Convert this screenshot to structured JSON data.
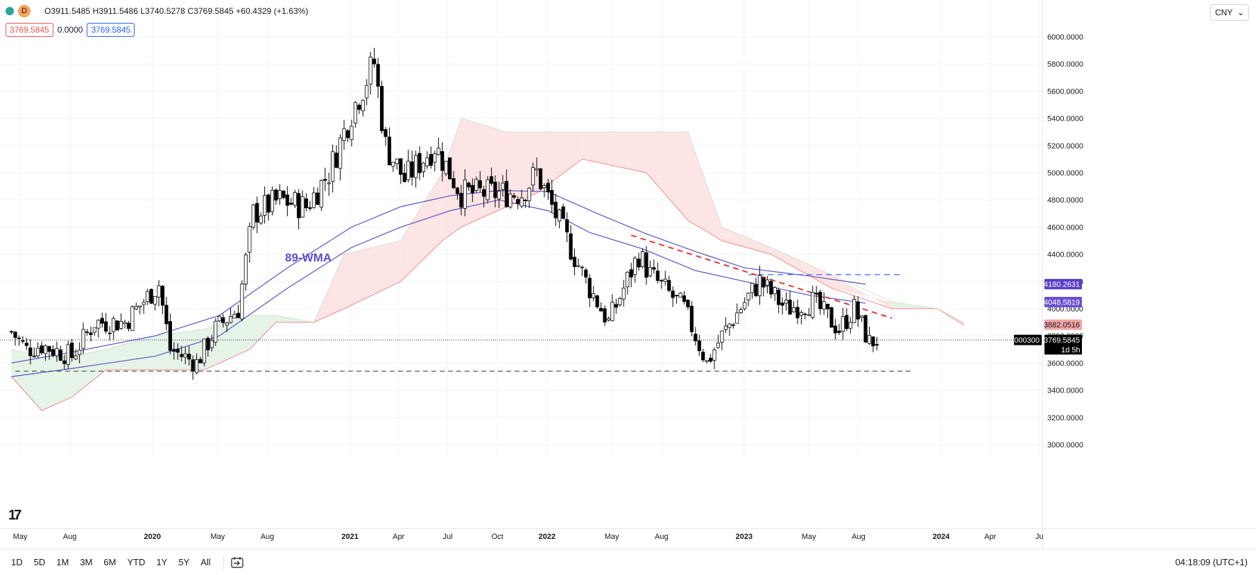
{
  "legend": {
    "symbol_letter": "D",
    "ohlc_text": "O3911.5485 H3911.5486 L3740.5278 C3769.5845 +60.4329 (+1.63%)",
    "bid": "3769.5845",
    "spread": "0.0000",
    "ask": "3769.5845"
  },
  "currency": "CNY",
  "range_buttons": [
    "1D",
    "5D",
    "1M",
    "3M",
    "6M",
    "YTD",
    "1Y",
    "5Y",
    "All"
  ],
  "clock": "04:18:09 (UTC+1)",
  "annotation": "89-WMA",
  "price_labels": {
    "ma_a": "4180.2631",
    "ma_b": "4048.5819",
    "cloud": "3882.0516",
    "last_price": "3769.5845",
    "countdown": "1d 5h",
    "symbol_tag": "000300"
  },
  "colors": {
    "up": "#ffffff",
    "down": "#000000",
    "wma": "#5c4fc7",
    "cloud_green": "#c8e6c9",
    "cloud_red": "#f8c4c4",
    "trend_red": "#e53935",
    "level_blue": "#2962ff",
    "support": "#555555"
  },
  "chart_data": {
    "type": "candlestick",
    "ylim": [
      2950,
      6100
    ],
    "y_ticks": [
      "6000.0000",
      "5800.0000",
      "5600.0000",
      "5400.0000",
      "5200.0000",
      "5000.0000",
      "4800.0000",
      "4600.0000",
      "4400.0000",
      "4200.0000",
      "4000.0000",
      "3800.0000",
      "3600.0000",
      "3400.0000",
      "3200.0000",
      "3000.0000"
    ],
    "x_ticks": [
      "May",
      "Aug",
      "2020",
      "May",
      "Aug",
      "2021",
      "Apr",
      "Jul",
      "Oct",
      "2022",
      "May",
      "Aug",
      "2023",
      "May",
      "Aug",
      "2024",
      "Apr",
      "Ju"
    ],
    "x_range": [
      "2019-04-15",
      "2024-07-15"
    ],
    "close_path": [
      [
        "2019-04-15",
        3830
      ],
      [
        "2019-05-13",
        3700
      ],
      [
        "2019-06-10",
        3730
      ],
      [
        "2019-08-05",
        3650
      ],
      [
        "2019-09-16",
        3900
      ],
      [
        "2019-11-11",
        3900
      ],
      [
        "2020-01-13",
        4180
      ],
      [
        "2020-02-03",
        3700
      ],
      [
        "2020-03-23",
        3600
      ],
      [
        "2020-04-27",
        3850
      ],
      [
        "2020-06-08",
        4000
      ],
      [
        "2020-07-06",
        4700
      ],
      [
        "2020-08-24",
        4800
      ],
      [
        "2020-10-12",
        4750
      ],
      [
        "2020-11-23",
        5000
      ],
      [
        "2021-01-04",
        5450
      ],
      [
        "2021-02-15",
        5810
      ],
      [
        "2021-03-08",
        5200
      ],
      [
        "2021-04-12",
        4950
      ],
      [
        "2021-06-07",
        5200
      ],
      [
        "2021-07-26",
        4850
      ],
      [
        "2021-09-13",
        4850
      ],
      [
        "2021-11-15",
        4850
      ],
      [
        "2021-12-13",
        5000
      ],
      [
        "2022-01-10",
        4750
      ],
      [
        "2022-03-14",
        4200
      ],
      [
        "2022-04-25",
        3900
      ],
      [
        "2022-06-20",
        4400
      ],
      [
        "2022-07-11",
        4250
      ],
      [
        "2022-09-12",
        4000
      ],
      [
        "2022-10-24",
        3600
      ],
      [
        "2022-11-21",
        3800
      ],
      [
        "2023-01-02",
        4050
      ],
      [
        "2023-01-30",
        4200
      ],
      [
        "2023-03-20",
        4000
      ],
      [
        "2023-05-08",
        4050
      ],
      [
        "2023-06-26",
        3850
      ],
      [
        "2023-07-24",
        4000
      ],
      [
        "2023-08-21",
        3750
      ],
      [
        "2023-09-04",
        3770
      ]
    ],
    "series": [
      {
        "name": "89-WMA",
        "values": [
          [
            "2019-04-15",
            3500
          ],
          [
            "2019-08-05",
            3560
          ],
          [
            "2020-01-06",
            3650
          ],
          [
            "2020-05-04",
            3800
          ],
          [
            "2020-09-07",
            4150
          ],
          [
            "2021-01-04",
            4450
          ],
          [
            "2021-04-05",
            4600
          ],
          [
            "2021-07-05",
            4720
          ],
          [
            "2021-10-04",
            4800
          ],
          [
            "2022-01-03",
            4720
          ],
          [
            "2022-03-21",
            4560
          ],
          [
            "2022-06-27",
            4440
          ],
          [
            "2022-10-03",
            4280
          ],
          [
            "2023-01-02",
            4200
          ],
          [
            "2023-05-01",
            4100
          ],
          [
            "2023-08-14",
            4040
          ]
        ]
      },
      {
        "values": [
          [
            "2019-04-15",
            3600
          ],
          [
            "2019-08-05",
            3680
          ],
          [
            "2020-01-06",
            3800
          ],
          [
            "2020-05-04",
            3950
          ],
          [
            "2020-09-07",
            4300
          ],
          [
            "2021-01-04",
            4600
          ],
          [
            "2021-04-05",
            4750
          ],
          [
            "2021-07-05",
            4830
          ],
          [
            "2021-10-04",
            4870
          ],
          [
            "2022-01-03",
            4860
          ],
          [
            "2022-04-04",
            4700
          ],
          [
            "2022-07-04",
            4550
          ],
          [
            "2022-10-03",
            4420
          ],
          [
            "2023-01-02",
            4300
          ],
          [
            "2023-05-01",
            4240
          ],
          [
            "2023-08-14",
            4180
          ]
        ]
      }
    ],
    "cloud": [
      [
        "2019-04-15",
        3700,
        3500
      ],
      [
        "2019-06-10",
        3650,
        3250
      ],
      [
        "2019-08-05",
        3650,
        3350
      ],
      [
        "2019-10-07",
        3700,
        3550
      ],
      [
        "2020-01-06",
        3800,
        3550
      ],
      [
        "2020-04-06",
        3850,
        3550
      ],
      [
        "2020-06-29",
        3950,
        3700
      ],
      [
        "2020-08-17",
        3950,
        3900
      ],
      [
        "2020-10-26",
        3900,
        3900
      ],
      [
        "2020-12-21",
        4000,
        4400
      ],
      [
        "2021-04-05",
        4200,
        4500
      ],
      [
        "2021-06-21",
        4500,
        5000
      ],
      [
        "2021-07-26",
        4600,
        5400
      ],
      [
        "2021-10-18",
        4750,
        5300
      ],
      [
        "2021-12-13",
        4850,
        5300
      ],
      [
        "2022-03-07",
        5100,
        5300
      ],
      [
        "2022-07-04",
        5000,
        5300
      ],
      [
        "2022-09-19",
        4650,
        5300
      ],
      [
        "2022-11-21",
        4500,
        4600
      ],
      [
        "2023-02-20",
        4400,
        4450
      ],
      [
        "2023-06-12",
        4150,
        4250
      ],
      [
        "2023-10-02",
        4050,
        4000
      ],
      [
        "2023-12-25",
        4000,
        4000
      ],
      [
        "2024-02-12",
        3880,
        3900
      ]
    ],
    "levels": [
      {
        "type": "support",
        "y": 3540,
        "from": "2019-04-22",
        "to": "2023-11-06"
      },
      {
        "type": "resistance",
        "y": 4250,
        "from": "2023-01-09",
        "to": "2023-10-16"
      }
    ],
    "trendline": {
      "from": [
        "2022-06-06",
        4540
      ],
      "to": [
        "2023-10-02",
        3930
      ]
    },
    "last_price": 3769.5845
  }
}
